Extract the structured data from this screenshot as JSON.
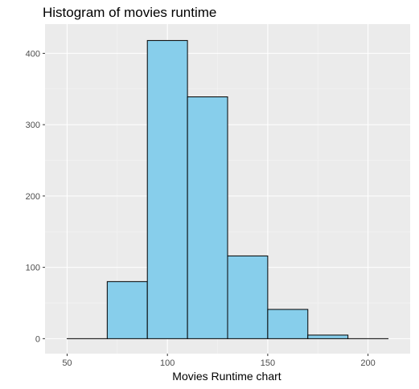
{
  "chart_data": {
    "type": "bar",
    "subtype": "histogram",
    "title": "Histogram of movies runtime",
    "xlabel": "Movies Runtime chart",
    "ylabel": "",
    "bins": [
      {
        "x0": 50,
        "x1": 70,
        "count": 0
      },
      {
        "x0": 70,
        "x1": 90,
        "count": 80
      },
      {
        "x0": 90,
        "x1": 110,
        "count": 418
      },
      {
        "x0": 110,
        "x1": 130,
        "count": 339
      },
      {
        "x0": 130,
        "x1": 150,
        "count": 116
      },
      {
        "x0": 150,
        "x1": 170,
        "count": 41
      },
      {
        "x0": 170,
        "x1": 190,
        "count": 5
      },
      {
        "x0": 190,
        "x1": 210,
        "count": 0
      }
    ],
    "xlim": [
      39,
      221
    ],
    "ylim": [
      -21,
      441
    ],
    "x_ticks": [
      50,
      100,
      150,
      200
    ],
    "y_ticks": [
      0,
      100,
      200,
      300,
      400
    ],
    "x_tick_labels": [
      "50",
      "100",
      "150",
      "200"
    ],
    "y_tick_labels": [
      "0",
      "100",
      "200",
      "300",
      "400"
    ],
    "grid": true,
    "legend": "none",
    "colors": {
      "panel_background": "#ebebeb",
      "grid_major": "#ffffff",
      "grid_minor": "#f5f5f5",
      "bar_fill": "#87ceeb",
      "bar_stroke": "#000000",
      "tick_text": "#4d4d4d",
      "tick_mark": "#333333"
    }
  }
}
